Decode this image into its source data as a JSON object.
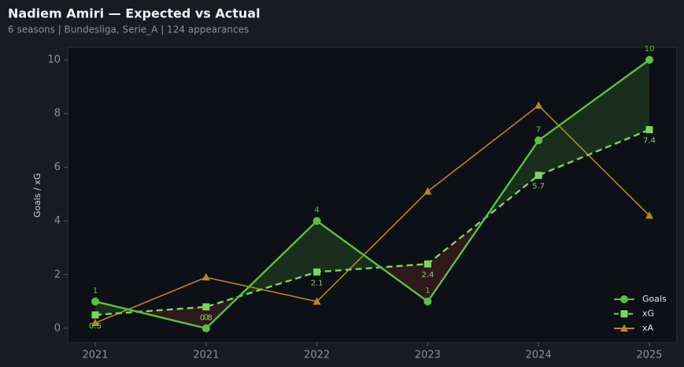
{
  "chart_data": {
    "type": "line",
    "title": "Nadiem Amiri — Expected vs Actual",
    "subtitle": "6 seasons | Bundesliga, Serie_A | 124 appearances",
    "y_label": "Goals / xG",
    "categories": [
      "2021",
      "2021",
      "2022",
      "2023",
      "2024",
      "2025"
    ],
    "series": [
      {
        "name": "Goals",
        "color": "#5cbf45",
        "marker": "circle",
        "dash": false,
        "labels": "above",
        "values": [
          1,
          0,
          4,
          1,
          7,
          10
        ]
      },
      {
        "name": "xG",
        "color": "#7dd65a",
        "marker": "square",
        "dash": true,
        "labels": "below",
        "values": [
          0.5,
          0.8,
          2.1,
          2.4,
          5.7,
          7.4
        ]
      },
      {
        "name": "xA",
        "color": "#b8861f",
        "marker": "triangle",
        "dash": false,
        "values": [
          0.2,
          1.9,
          1.0,
          5.1,
          8.3,
          4.2
        ]
      }
    ],
    "ylim": [
      -0.53,
      10.47
    ],
    "yticks": [
      0,
      2,
      4,
      6,
      8,
      10
    ],
    "legend": "lower right"
  }
}
